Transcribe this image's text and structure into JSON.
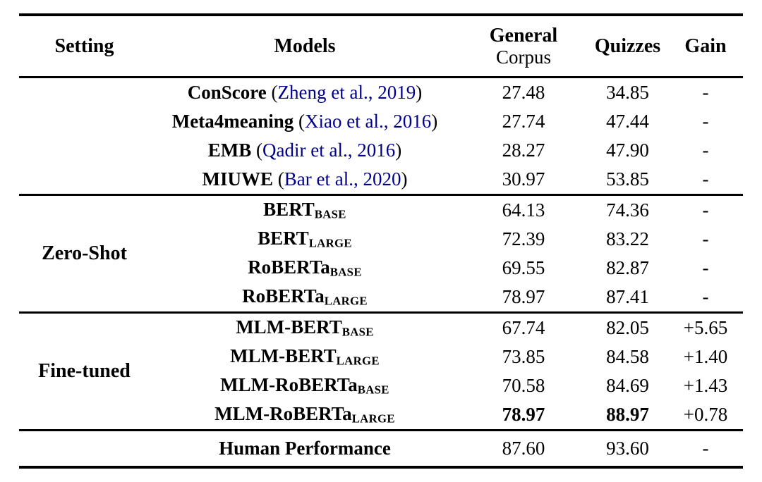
{
  "table": {
    "colors": {
      "citation": "#00008B",
      "text": "#000000",
      "rule": "#000000",
      "background": "#ffffff"
    },
    "columns": {
      "setting": "Setting",
      "models": "Models",
      "general_corpus_line1": "General",
      "general_corpus_line2": "Corpus",
      "quizzes": "Quizzes",
      "gain": "Gain"
    },
    "sections": [
      {
        "setting": "",
        "rows": [
          {
            "model_parts": [
              {
                "text": "ConScore",
                "style": "bold"
              },
              {
                "text": " (",
                "style": "plain"
              },
              {
                "text": "Zheng et al., 2019",
                "style": "link"
              },
              {
                "text": ")",
                "style": "plain"
              }
            ],
            "general_corpus": "27.48",
            "quizzes": "34.85",
            "gain": "-",
            "values_bold": false
          },
          {
            "model_parts": [
              {
                "text": "Meta4meaning",
                "style": "bold"
              },
              {
                "text": " (",
                "style": "plain"
              },
              {
                "text": "Xiao et al., 2016",
                "style": "link"
              },
              {
                "text": ")",
                "style": "plain"
              }
            ],
            "general_corpus": "27.74",
            "quizzes": "47.44",
            "gain": "-",
            "values_bold": false
          },
          {
            "model_parts": [
              {
                "text": "EMB",
                "style": "bold"
              },
              {
                "text": " (",
                "style": "plain"
              },
              {
                "text": "Qadir et al., 2016",
                "style": "link"
              },
              {
                "text": ")",
                "style": "plain"
              }
            ],
            "general_corpus": "28.27",
            "quizzes": "47.90",
            "gain": "-",
            "values_bold": false
          },
          {
            "model_parts": [
              {
                "text": "MIUWE",
                "style": "bold"
              },
              {
                "text": " (",
                "style": "plain"
              },
              {
                "text": "Bar et al., 2020",
                "style": "link"
              },
              {
                "text": ")",
                "style": "plain"
              }
            ],
            "general_corpus": "30.97",
            "quizzes": "53.85",
            "gain": "-",
            "values_bold": false
          }
        ]
      },
      {
        "setting": "Zero-Shot",
        "rows": [
          {
            "model_parts": [
              {
                "text": "BERT",
                "style": "bold"
              },
              {
                "text": "BASE",
                "style": "subscript"
              }
            ],
            "general_corpus": "64.13",
            "quizzes": "74.36",
            "gain": "-",
            "values_bold": false
          },
          {
            "model_parts": [
              {
                "text": "BERT",
                "style": "bold"
              },
              {
                "text": "LARGE",
                "style": "subscript"
              }
            ],
            "general_corpus": "72.39",
            "quizzes": "83.22",
            "gain": "-",
            "values_bold": false
          },
          {
            "model_parts": [
              {
                "text": "RoBERTa",
                "style": "bold"
              },
              {
                "text": "BASE",
                "style": "subscript"
              }
            ],
            "general_corpus": "69.55",
            "quizzes": "82.87",
            "gain": "-",
            "values_bold": false
          },
          {
            "model_parts": [
              {
                "text": "RoBERTa",
                "style": "bold"
              },
              {
                "text": "LARGE",
                "style": "subscript"
              }
            ],
            "general_corpus": "78.97",
            "quizzes": "87.41",
            "gain": "-",
            "values_bold": false
          }
        ]
      },
      {
        "setting": "Fine-tuned",
        "rows": [
          {
            "model_parts": [
              {
                "text": "MLM-BERT",
                "style": "bold"
              },
              {
                "text": "BASE",
                "style": "subscript"
              }
            ],
            "general_corpus": "67.74",
            "quizzes": "82.05",
            "gain": "+5.65",
            "values_bold": false
          },
          {
            "model_parts": [
              {
                "text": "MLM-BERT",
                "style": "bold"
              },
              {
                "text": "LARGE",
                "style": "subscript"
              }
            ],
            "general_corpus": "73.85",
            "quizzes": "84.58",
            "gain": "+1.40",
            "values_bold": false
          },
          {
            "model_parts": [
              {
                "text": "MLM-RoBERTa",
                "style": "bold"
              },
              {
                "text": "BASE",
                "style": "subscript"
              }
            ],
            "general_corpus": "70.58",
            "quizzes": "84.69",
            "gain": "+1.43",
            "values_bold": false
          },
          {
            "model_parts": [
              {
                "text": "MLM-RoBERTa",
                "style": "bold"
              },
              {
                "text": "LARGE",
                "style": "subscript"
              }
            ],
            "general_corpus": "78.97",
            "quizzes": "88.97",
            "gain": "+0.78",
            "values_bold": true
          }
        ]
      },
      {
        "setting": "",
        "rows": [
          {
            "model_parts": [
              {
                "text": "Human Performance",
                "style": "bold"
              }
            ],
            "general_corpus": "87.60",
            "quizzes": "93.60",
            "gain": "-",
            "values_bold": false
          }
        ]
      }
    ]
  }
}
